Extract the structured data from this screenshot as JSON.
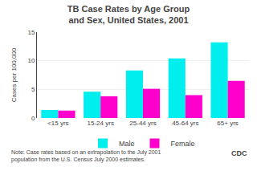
{
  "chart_data": {
    "type": "bar",
    "title": "TB Case Rates by Age Group",
    "subtitle": "and Sex, United States, 2001",
    "categories": [
      "<15 yrs",
      "15-24 yrs",
      "25-44 yrs",
      "45-64 yrs",
      "65+ yrs"
    ],
    "series": [
      {
        "name": "Male",
        "color": "#00EEEE",
        "values": [
          1.4,
          4.6,
          8.3,
          10.4,
          13.2
        ]
      },
      {
        "name": "Female",
        "color": "#FF00CC",
        "values": [
          1.3,
          3.8,
          5.1,
          4.0,
          6.5
        ]
      }
    ],
    "ylabel": "Cases per 100,000",
    "ylim": [
      0,
      15
    ],
    "yticks": [
      0,
      5,
      10,
      15
    ],
    "grid": true,
    "legend": "bottom",
    "annotations": [
      "Note: Case rates based on an extrapolation to the July 2001\npopulation from the U.S. Census July 2000 estimates.",
      "CDC"
    ]
  }
}
